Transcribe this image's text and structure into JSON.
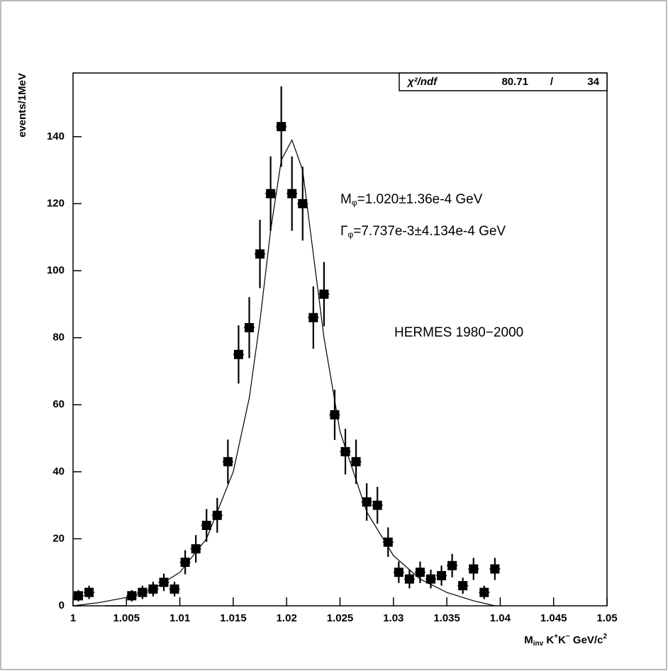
{
  "chart_data": {
    "type": "scatter",
    "xlabel": [
      "M",
      "inv",
      " K",
      "+",
      "K",
      "−",
      " GeV/c",
      "2"
    ],
    "ylabel": "events/1MeV",
    "stats": {
      "label": "χ²/ndf",
      "chi2": 80.71,
      "sep": "/",
      "ndf": 34
    },
    "annotations": [
      [
        "M",
        "φ",
        "=1.020±1.36e-4 GeV"
      ],
      [
        "Γ",
        "φ",
        "=7.737e-3±4.134e-4 GeV"
      ],
      [
        "HERMES 1980−2000"
      ]
    ],
    "xlim": [
      1,
      1.05
    ],
    "ylim": [
      0,
      159
    ],
    "xticks": [
      1,
      1.005,
      1.01,
      1.015,
      1.02,
      1.025,
      1.03,
      1.035,
      1.04,
      1.045,
      1.05
    ],
    "yticks": [
      0,
      20,
      40,
      60,
      80,
      100,
      120,
      140
    ],
    "bin_width": 0.001,
    "color": "#000000",
    "x": [
      1.0005,
      1.0015,
      1.0035,
      1.0045,
      1.0055,
      1.0065,
      1.0075,
      1.0085,
      1.0095,
      1.0105,
      1.0115,
      1.0125,
      1.0135,
      1.0145,
      1.0155,
      1.0165,
      1.0175,
      1.0185,
      1.0195,
      1.0205,
      1.0215,
      1.0225,
      1.0235,
      1.0245,
      1.0255,
      1.0265,
      1.0275,
      1.0285,
      1.0295,
      1.0305,
      1.0315,
      1.0325,
      1.0335,
      1.0345,
      1.0355,
      1.0365,
      1.0375,
      1.0385,
      1.0395
    ],
    "values": [
      3,
      4,
      0,
      0,
      3,
      4,
      5,
      7,
      5,
      13,
      17,
      24,
      27,
      43,
      75,
      83,
      105,
      123,
      143,
      123,
      120,
      86,
      93,
      57,
      46,
      43,
      31,
      30,
      19,
      10,
      8,
      10,
      8,
      9,
      12,
      6,
      11,
      4,
      11
    ],
    "errors": [
      1.7,
      2,
      0,
      0,
      1.7,
      2,
      2.2,
      2.6,
      2.2,
      3.6,
      4.1,
      4.9,
      5.2,
      6.6,
      8.7,
      9.1,
      10.2,
      11.1,
      12,
      11.1,
      11,
      9.3,
      9.6,
      7.5,
      6.8,
      6.6,
      5.6,
      5.5,
      4.4,
      3.2,
      2.8,
      3.2,
      2.8,
      3,
      3.5,
      2.4,
      3.3,
      2,
      3.3
    ],
    "fit": {
      "x": [
        1.0,
        1.0025,
        1.005,
        1.0075,
        1.01,
        1.0125,
        1.015,
        1.0165,
        1.0175,
        1.0185,
        1.0195,
        1.0205,
        1.0215,
        1.0225,
        1.0235,
        1.025,
        1.0275,
        1.03,
        1.0325,
        1.035,
        1.0375,
        1.0395
      ],
      "values": [
        0,
        1,
        2.5,
        5,
        10,
        20,
        40,
        62,
        85,
        112,
        133,
        139,
        130,
        105,
        80,
        52,
        28,
        15,
        8,
        4,
        1.5,
        0
      ]
    }
  }
}
